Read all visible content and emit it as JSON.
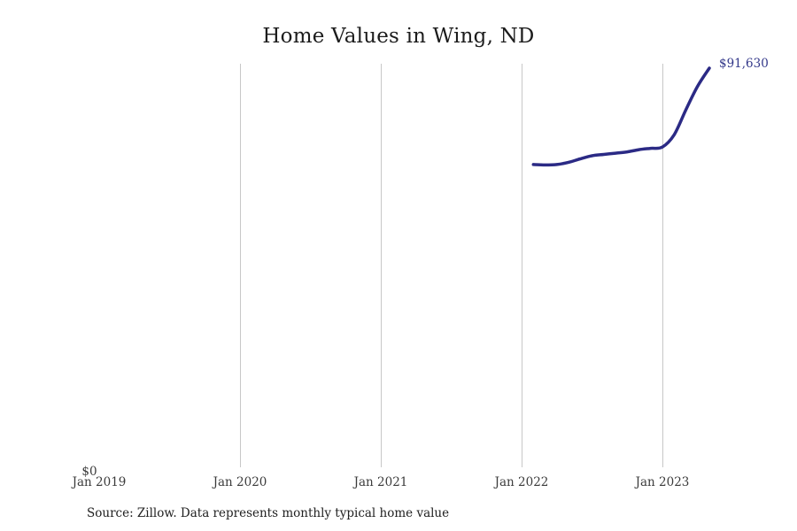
{
  "page": {
    "source_note": "Source: Zillow. Data represents monthly typical home value"
  },
  "chart_data": {
    "type": "line",
    "title": "Home Values in Wing, ND",
    "series_name": "Monthly typical home value",
    "x": [
      "Feb 2022",
      "Mar 2022",
      "Apr 2022",
      "May 2022",
      "Jun 2022",
      "Jul 2022",
      "Aug 2022",
      "Sep 2022",
      "Oct 2022",
      "Nov 2022",
      "Dec 2022",
      "Jan 2023",
      "Feb 2023",
      "Mar 2023",
      "Apr 2023",
      "May 2023"
    ],
    "values": [
      69600,
      69500,
      69600,
      70100,
      70900,
      71600,
      71900,
      72200,
      72500,
      73000,
      73300,
      73600,
      76400,
      82100,
      87500,
      91630
    ],
    "latest_value": 91630,
    "end_label": "$91,630",
    "xlabel": "",
    "ylabel": "",
    "x_axis_ticks": [
      "Jan 2019",
      "Jan 2020",
      "Jan 2021",
      "Jan 2022",
      "Jan 2023"
    ],
    "y_axis_ticks": [
      "$0"
    ],
    "ylim": [
      0,
      95000
    ],
    "x_range": [
      "Jan 2019",
      "Jun 2023"
    ],
    "grid": "vertical-only",
    "legend": "none",
    "colors": {
      "line": "#2b2a85",
      "end_label": "#323789",
      "gridline": "#c7c7c7",
      "axis_text": "#3b3b3b",
      "title_text": "#1c1c1c"
    }
  }
}
